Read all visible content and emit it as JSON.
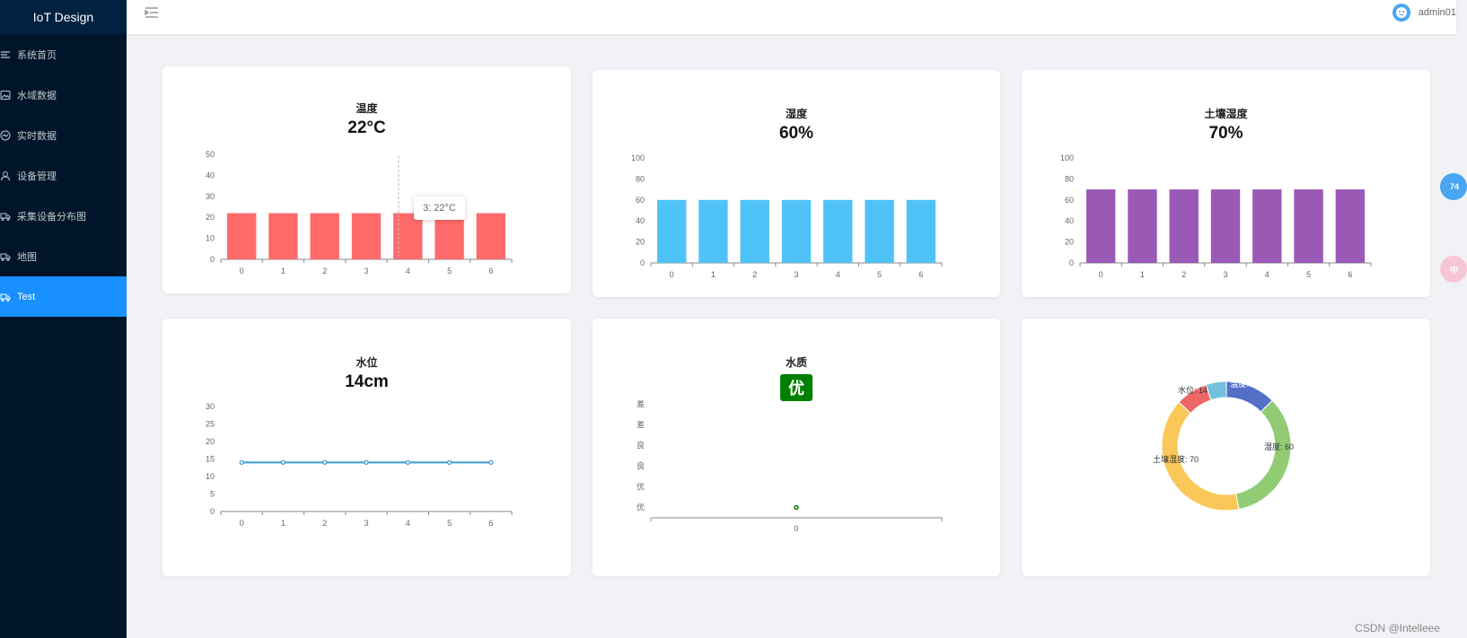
{
  "app": {
    "title": "IoT Design"
  },
  "sidebar": {
    "items": [
      {
        "label": "系统首页",
        "icon": "list-icon"
      },
      {
        "label": "水域数据",
        "icon": "image-icon"
      },
      {
        "label": "实时数据",
        "icon": "gauge-icon"
      },
      {
        "label": "设备管理",
        "icon": "user-icon"
      },
      {
        "label": "采集设备分布图",
        "icon": "truck-icon"
      },
      {
        "label": "地图",
        "icon": "truck-icon"
      },
      {
        "label": "Test",
        "icon": "truck-icon",
        "active": true
      }
    ]
  },
  "header": {
    "username": "admin01"
  },
  "cards": {
    "temperature": {
      "title": "温度",
      "value": "22°C"
    },
    "humidity": {
      "title": "湿度",
      "value": "60%"
    },
    "soil": {
      "title": "土壤湿度",
      "value": "70%"
    },
    "water_level": {
      "title": "水位",
      "value": "14cm"
    },
    "water_quality": {
      "title": "水质",
      "badge": "优"
    }
  },
  "tooltip": {
    "text": "3: 22°C"
  },
  "float_buttons": {
    "top": "74",
    "bottom": "中"
  },
  "watermark": "CSDN @Intelleee",
  "colors": {
    "temperature": "#ff6b6b",
    "humidity": "#4fc3f7",
    "soil": "#9b59b6",
    "level": "#3a9ad9",
    "quality": "#008000"
  },
  "chart_data": [
    {
      "id": "temperature",
      "type": "bar",
      "categories": [
        "0",
        "1",
        "2",
        "3",
        "4",
        "5",
        "6"
      ],
      "values": [
        22,
        22,
        22,
        22,
        22,
        22,
        22
      ],
      "ylim": [
        0,
        50
      ],
      "yticks": [
        0,
        10,
        20,
        30,
        40,
        50
      ]
    },
    {
      "id": "humidity",
      "type": "bar",
      "categories": [
        "0",
        "1",
        "2",
        "3",
        "4",
        "5",
        "6"
      ],
      "values": [
        60,
        60,
        60,
        60,
        60,
        60,
        60
      ],
      "ylim": [
        0,
        100
      ],
      "yticks": [
        0,
        20,
        40,
        60,
        80,
        100
      ]
    },
    {
      "id": "soil",
      "type": "bar",
      "categories": [
        "0",
        "1",
        "2",
        "3",
        "4",
        "5",
        "6"
      ],
      "values": [
        70,
        70,
        70,
        70,
        70,
        70,
        70
      ],
      "ylim": [
        0,
        100
      ],
      "yticks": [
        0,
        20,
        40,
        60,
        80,
        100
      ]
    },
    {
      "id": "water_level",
      "type": "line",
      "categories": [
        "0",
        "1",
        "2",
        "3",
        "4",
        "5",
        "6"
      ],
      "values": [
        14,
        14,
        14,
        14,
        14,
        14,
        14
      ],
      "ylim": [
        0,
        30
      ],
      "yticks": [
        0,
        5,
        10,
        15,
        20,
        25,
        30
      ]
    },
    {
      "id": "water_quality",
      "type": "scatter",
      "categories": [
        "0"
      ],
      "y_categories": [
        "优",
        "优",
        "良",
        "良",
        "差",
        "差"
      ],
      "values": [
        "优"
      ]
    },
    {
      "id": "summary",
      "type": "pie",
      "donut": true,
      "slices": [
        {
          "label": "温度: 22",
          "value": 22,
          "color": "#5470c6"
        },
        {
          "label": "湿度: 60",
          "value": 60,
          "color": "#91cc75"
        },
        {
          "label": "土壤湿度: 70",
          "value": 70,
          "color": "#fac858"
        },
        {
          "label": "水位: 14",
          "value": 14,
          "color": "#ee6666"
        },
        {
          "label": "",
          "value": 9,
          "color": "#73c0de"
        }
      ]
    }
  ]
}
